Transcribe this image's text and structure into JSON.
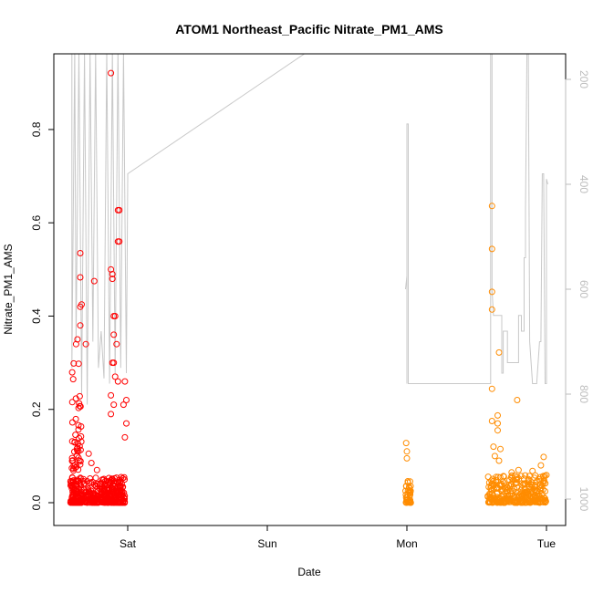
{
  "chart_data": {
    "type": "scatter",
    "title": "ATOM1 Northeast_Pacific Nitrate_PM1_AMS",
    "xlabel": "Date",
    "ylabel": "Nitrate_PM1_AMS",
    "x_ticks": [
      "Sat",
      "Sun",
      "Mon",
      "Tue"
    ],
    "y_ticks": [
      "0.0",
      "0.2",
      "0.4",
      "0.6",
      "0.8"
    ],
    "y2_ticks": [
      "200",
      "400",
      "600",
      "800",
      "1000"
    ],
    "xlim_days": [
      -0.45,
      3.15
    ],
    "ylim": [
      -0.045,
      0.955
    ],
    "y2lim_reversed": [
      1025,
      145
    ],
    "colors": {
      "series1": "#ff0000",
      "series2": "#ff8c00",
      "pressure_line": "#c8c8c8"
    },
    "series": [
      {
        "color": "#ff0000",
        "clusters": [
          {
            "x_range": [
              -0.41,
              -0.02
            ],
            "dense_band": [
              0.0,
              0.055
            ],
            "count": 380
          },
          {
            "x_range": [
              -0.4,
              -0.33
            ],
            "dense_band": [
              0.0,
              0.32
            ],
            "count": 90
          }
        ],
        "points": [
          [
            -0.34,
            0.535
          ],
          [
            -0.34,
            0.483
          ],
          [
            -0.33,
            0.425
          ],
          [
            -0.34,
            0.42
          ],
          [
            -0.34,
            0.38
          ],
          [
            -0.36,
            0.35
          ],
          [
            -0.37,
            0.34
          ],
          [
            -0.3,
            0.34
          ],
          [
            -0.24,
            0.475
          ],
          [
            -0.12,
            0.921
          ],
          [
            -0.12,
            0.5
          ],
          [
            -0.11,
            0.49
          ],
          [
            -0.11,
            0.48
          ],
          [
            -0.06,
            0.627
          ],
          [
            -0.07,
            0.627
          ],
          [
            -0.07,
            0.56
          ],
          [
            -0.06,
            0.56
          ],
          [
            -0.1,
            0.4
          ],
          [
            -0.09,
            0.4
          ],
          [
            -0.1,
            0.36
          ],
          [
            -0.08,
            0.34
          ],
          [
            -0.11,
            0.3
          ],
          [
            -0.1,
            0.3
          ],
          [
            -0.09,
            0.27
          ],
          [
            -0.07,
            0.26
          ],
          [
            -0.02,
            0.26
          ],
          [
            -0.01,
            0.22
          ],
          [
            -0.03,
            0.21
          ],
          [
            -0.12,
            0.23
          ],
          [
            -0.1,
            0.21
          ],
          [
            -0.12,
            0.19
          ],
          [
            -0.01,
            0.17
          ],
          [
            -0.02,
            0.14
          ],
          [
            -0.28,
            0.105
          ],
          [
            -0.26,
            0.085
          ],
          [
            -0.22,
            0.07
          ]
        ]
      },
      {
        "color": "#ff8c00",
        "clusters": [
          {
            "x_range": [
              1.99,
              2.03
            ],
            "dense_band": [
              0.0,
              0.05
            ],
            "count": 40
          },
          {
            "x_range": [
              2.58,
              3.0
            ],
            "dense_band": [
              0.0,
              0.06
            ],
            "count": 300
          }
        ],
        "points": [
          [
            1.995,
            0.128
          ],
          [
            2.0,
            0.11
          ],
          [
            2.0,
            0.095
          ],
          [
            2.61,
            0.636
          ],
          [
            2.61,
            0.544
          ],
          [
            2.61,
            0.452
          ],
          [
            2.61,
            0.414
          ],
          [
            2.66,
            0.322
          ],
          [
            2.61,
            0.244
          ],
          [
            2.79,
            0.22
          ],
          [
            2.61,
            0.175
          ],
          [
            2.65,
            0.187
          ],
          [
            2.65,
            0.17
          ],
          [
            2.65,
            0.155
          ],
          [
            2.62,
            0.12
          ],
          [
            2.67,
            0.115
          ],
          [
            2.63,
            0.1
          ],
          [
            2.66,
            0.09
          ],
          [
            2.98,
            0.098
          ],
          [
            2.96,
            0.08
          ],
          [
            2.8,
            0.07
          ],
          [
            2.75,
            0.065
          ],
          [
            2.9,
            0.068
          ]
        ]
      }
    ],
    "pressure_line_hPa": [
      [
        -0.4,
        145
      ],
      [
        -0.4,
        750
      ],
      [
        -0.38,
        145
      ],
      [
        -0.37,
        700
      ],
      [
        -0.35,
        145
      ],
      [
        -0.33,
        800
      ],
      [
        -0.31,
        145
      ],
      [
        -0.29,
        820
      ],
      [
        -0.27,
        145
      ],
      [
        -0.25,
        700
      ],
      [
        -0.23,
        145
      ],
      [
        -0.21,
        750
      ],
      [
        -0.19,
        680
      ],
      [
        -0.17,
        770
      ],
      [
        -0.15,
        145
      ],
      [
        -0.13,
        780
      ],
      [
        -0.11,
        145
      ],
      [
        -0.09,
        760
      ],
      [
        -0.07,
        145
      ],
      [
        -0.05,
        750
      ],
      [
        -0.03,
        145
      ],
      [
        -0.01,
        760
      ],
      [
        0.0,
        390
      ],
      [
        0.0,
        380
      ],
      [
        1.3,
        145
      ],
      [
        1.35,
        145
      ]
    ],
    "pressure_line_hPa_2": [
      [
        1.99,
        600
      ],
      [
        2.0,
        575
      ],
      [
        2.0,
        780
      ],
      [
        2.0,
        285
      ],
      [
        2.01,
        285
      ],
      [
        2.01,
        780
      ],
      [
        2.6,
        780
      ],
      [
        2.6,
        145
      ],
      [
        2.61,
        145
      ],
      [
        2.61,
        600
      ],
      [
        2.62,
        650
      ],
      [
        2.68,
        650
      ],
      [
        2.68,
        760
      ],
      [
        2.69,
        760
      ],
      [
        2.69,
        680
      ],
      [
        2.72,
        680
      ],
      [
        2.72,
        740
      ],
      [
        2.74,
        740
      ],
      [
        2.74,
        740
      ],
      [
        2.78,
        740
      ],
      [
        2.78,
        740
      ],
      [
        2.8,
        740
      ],
      [
        2.8,
        650
      ],
      [
        2.82,
        650
      ],
      [
        2.82,
        680
      ],
      [
        2.84,
        680
      ],
      [
        2.84,
        540
      ],
      [
        2.85,
        540
      ],
      [
        2.85,
        450
      ],
      [
        2.86,
        145
      ],
      [
        2.87,
        145
      ],
      [
        2.88,
        700
      ],
      [
        2.9,
        780
      ],
      [
        2.9,
        780
      ],
      [
        2.91,
        780
      ],
      [
        2.92,
        780
      ],
      [
        2.93,
        780
      ],
      [
        2.95,
        700
      ],
      [
        2.96,
        700
      ],
      [
        2.97,
        380
      ],
      [
        2.98,
        380
      ],
      [
        2.99,
        780
      ],
      [
        3.0,
        780
      ],
      [
        3.0,
        390
      ],
      [
        3.01,
        400
      ]
    ]
  }
}
